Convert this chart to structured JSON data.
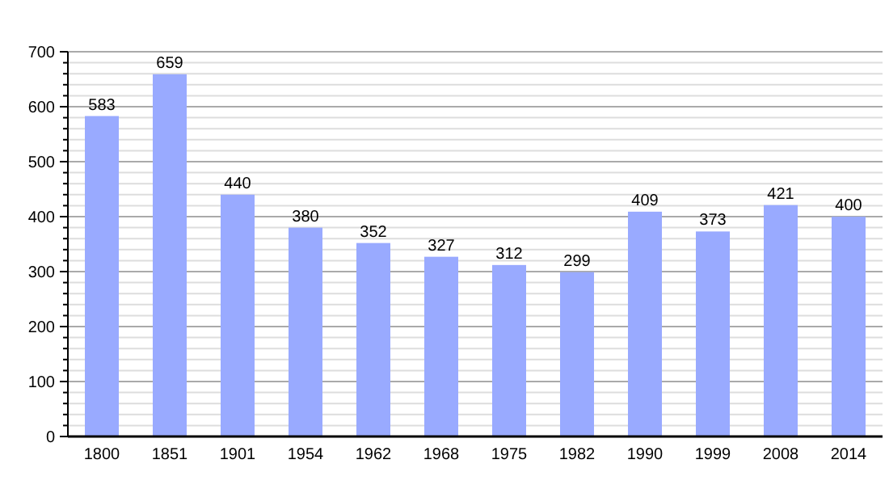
{
  "chart_data": {
    "type": "bar",
    "categories": [
      "1800",
      "1851",
      "1901",
      "1954",
      "1962",
      "1968",
      "1975",
      "1982",
      "1990",
      "1999",
      "2008",
      "2014"
    ],
    "values": [
      583,
      659,
      440,
      380,
      352,
      327,
      312,
      299,
      409,
      373,
      421,
      400
    ],
    "color": "#99aaff",
    "data_labels": true,
    "grid": true,
    "ylim": [
      0,
      700
    ],
    "yticks": [
      0,
      {
        "value": 20,
        "label": null
      },
      {
        "value": 40,
        "label": null
      },
      {
        "value": 60,
        "label": null
      },
      {
        "value": 80,
        "label": null
      },
      100,
      {
        "value": 120,
        "label": null
      },
      {
        "value": 140,
        "label": null
      },
      {
        "value": 160,
        "label": null
      },
      {
        "value": 180,
        "label": null
      },
      200,
      {
        "value": 220,
        "label": null
      },
      {
        "value": 240,
        "label": null
      },
      {
        "value": 260,
        "label": null
      },
      {
        "value": 280,
        "label": null
      },
      300,
      {
        "value": 320,
        "label": null
      },
      {
        "value": 340,
        "label": null
      },
      {
        "value": 360,
        "label": null
      },
      {
        "value": 380,
        "label": null
      },
      400,
      {
        "value": 420,
        "label": null
      },
      {
        "value": 440,
        "label": null
      },
      {
        "value": 460,
        "label": null
      },
      {
        "value": 480,
        "label": null
      },
      500,
      {
        "value": 520,
        "label": null
      },
      {
        "value": 540,
        "label": null
      },
      {
        "value": 560,
        "label": null
      },
      {
        "value": 580,
        "label": null
      },
      600,
      {
        "value": 620,
        "label": null
      },
      {
        "value": 640,
        "label": null
      },
      {
        "value": 660,
        "label": null
      },
      {
        "value": 680,
        "label": null
      },
      700
    ]
  }
}
